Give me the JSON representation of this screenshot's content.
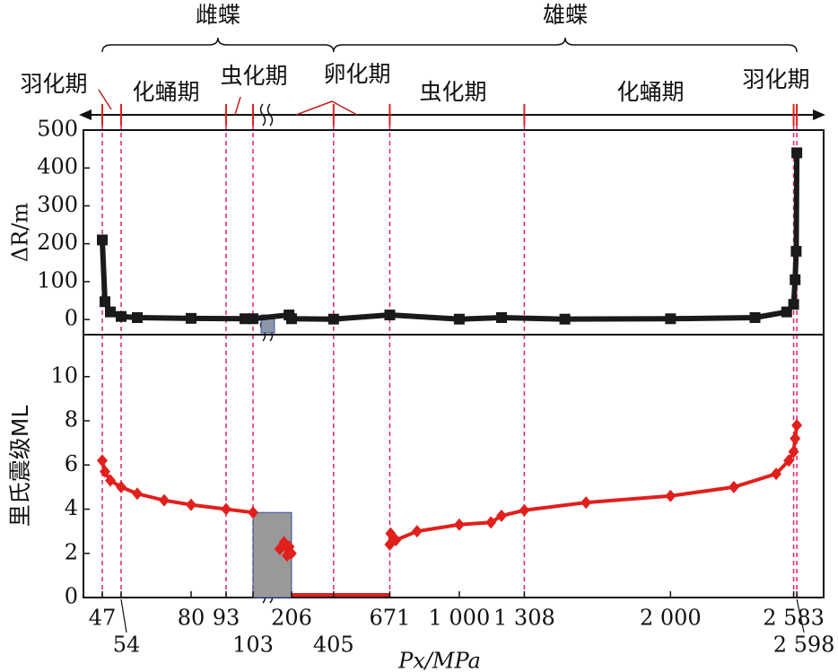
{
  "chart_data": {
    "type": "line",
    "x_label": "Px/MPa",
    "xsegments": [
      {
        "xlim": [
          40,
          109
        ]
      },
      {
        "xlim": [
          100,
          2725
        ]
      }
    ],
    "xticks": [
      47,
      54,
      80,
      93,
      103,
      206,
      405,
      671,
      {
        "value": 1000,
        "label": "1 000"
      },
      {
        "value": 1308,
        "label": "1 308"
      },
      {
        "value": 2000,
        "label": "2 000"
      },
      {
        "value": 2583,
        "label": "2 583"
      },
      {
        "value": 2598,
        "label": "2 598"
      }
    ],
    "vlines": [
      47,
      54,
      93,
      103,
      405,
      671,
      1308,
      2583,
      2598
    ],
    "sexes": [
      {
        "name": "雌蝶",
        "from": 47,
        "to": 405
      },
      {
        "name": "雄蝶",
        "from": 405,
        "to": 2598
      }
    ],
    "phases": [
      "羽化期",
      "化蛹期",
      "虫化期",
      "卵化期",
      "虫化期",
      "化蛹期",
      "羽化期"
    ],
    "panels": [
      {
        "y_label": "ΔR/m",
        "ylim": [
          -40,
          500
        ],
        "yticks": [
          0,
          100,
          200,
          300,
          400,
          500
        ],
        "shaded": {
          "x": [
            106,
            125
          ],
          "y": [
            -35,
            12
          ],
          "color": "#8c96a8"
        },
        "series": [
          {
            "color": "#1a1a1a",
            "marker": "square",
            "x": [
              47,
              48,
              50,
              54,
              60,
              80,
              100,
              103,
              194,
              206,
              405,
              671,
              1000,
              1200,
              1500,
              2000,
              2400,
              2550,
              2583,
              2590,
              2595,
              2598
            ],
            "values": [
              210,
              47,
              20,
              8,
              5,
              3,
              2,
              2,
              12,
              2,
              1,
              12,
              1,
              5,
              1,
              2,
              5,
              20,
              40,
              105,
              180,
              440
            ]
          }
        ]
      },
      {
        "y_label": "里氏震级ML",
        "ylim": [
          0,
          11.9
        ],
        "yticks": [
          0,
          2,
          4,
          6,
          8,
          10
        ],
        "shaded": {
          "x": [
            103,
            206
          ],
          "y": [
            0,
            3.85
          ],
          "color": "#999999"
        },
        "series": [
          {
            "color": "#e0201c",
            "marker": "diamond",
            "x": [
              47,
              48,
              50,
              54,
              60,
              70,
              80,
              93,
              103
            ],
            "values": [
              6.2,
              5.7,
              5.3,
              5.0,
              4.7,
              4.4,
              4.2,
              4.0,
              3.85
            ]
          },
          {
            "color": "#e0201c",
            "marker": "diamond",
            "x": [
              150,
              170,
              185,
              195,
              205
            ],
            "values": [
              2.2,
              2.5,
              1.9,
              2.3,
              2.0
            ]
          },
          {
            "color": "#e0201c",
            "marker": "none",
            "x": [
              206,
              671
            ],
            "values": [
              0.12,
              0.12
            ]
          },
          {
            "color": "#e0201c",
            "marker": "diamond",
            "x": [
              671,
              675,
              700,
              800,
              1000,
              1150,
              1200,
              1308,
              1600,
              2000,
              2300,
              2500,
              2560,
              2583,
              2590,
              2598
            ],
            "values": [
              2.4,
              2.9,
              2.6,
              3.0,
              3.3,
              3.4,
              3.7,
              3.95,
              4.3,
              4.6,
              5.0,
              5.6,
              6.2,
              6.6,
              7.2,
              7.8
            ]
          }
        ]
      }
    ]
  }
}
